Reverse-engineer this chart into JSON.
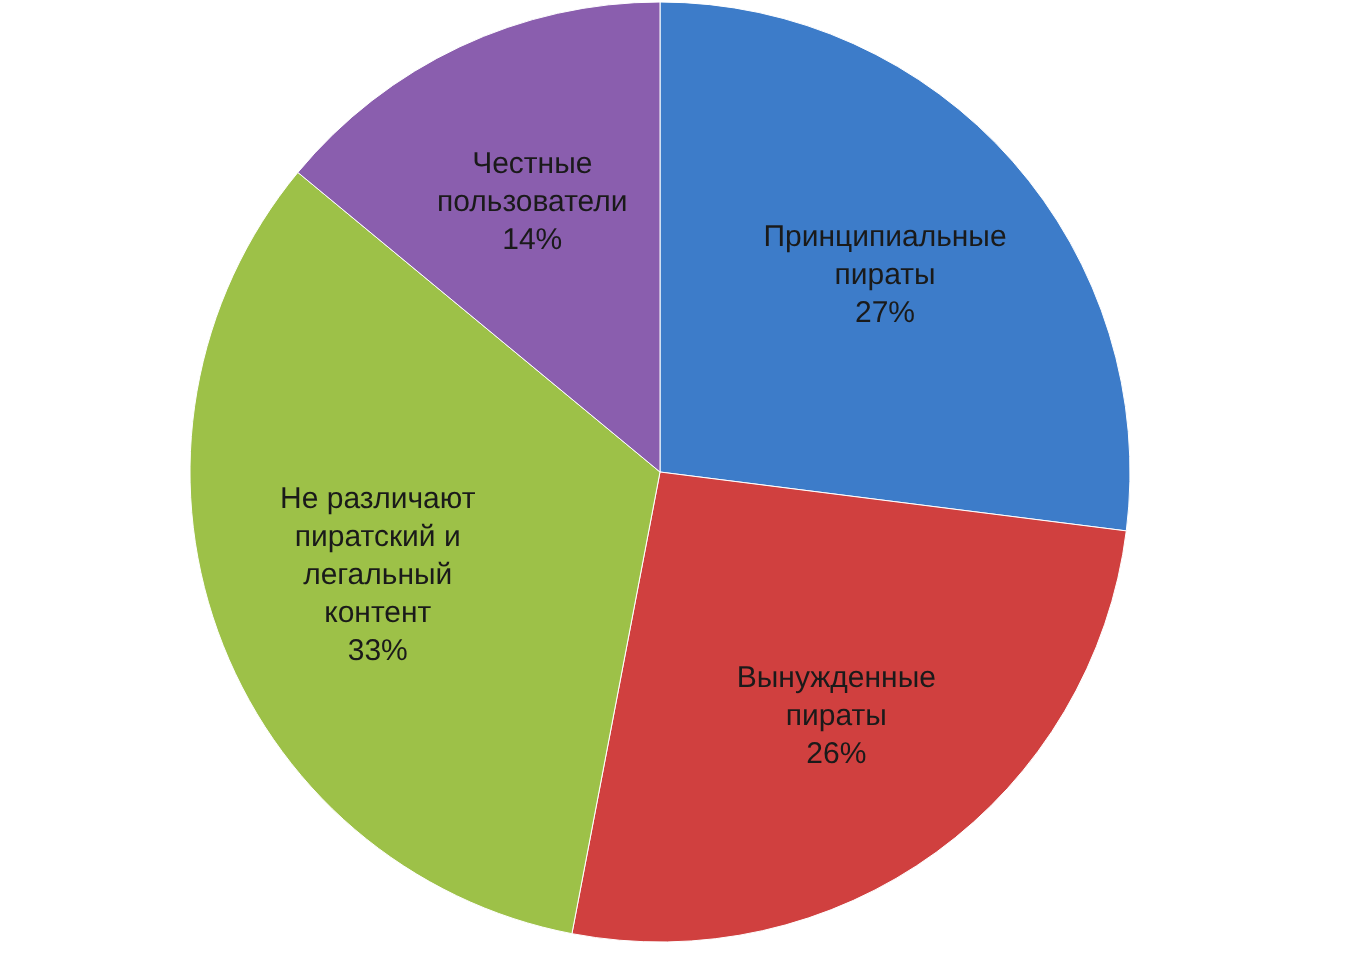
{
  "chart_data": {
    "type": "pie",
    "categories": [
      "Принципиальные пираты",
      "Вынужденные пираты",
      "Не различают пиратский и легальный контент",
      "Честные пользователи"
    ],
    "values": [
      27,
      26,
      33,
      14
    ],
    "value_labels": [
      "27%",
      "26%",
      "33%",
      "14%"
    ],
    "colors": [
      "#3d7cc9",
      "#d0403f",
      "#9dc148",
      "#8a5eae"
    ],
    "legend": false
  }
}
